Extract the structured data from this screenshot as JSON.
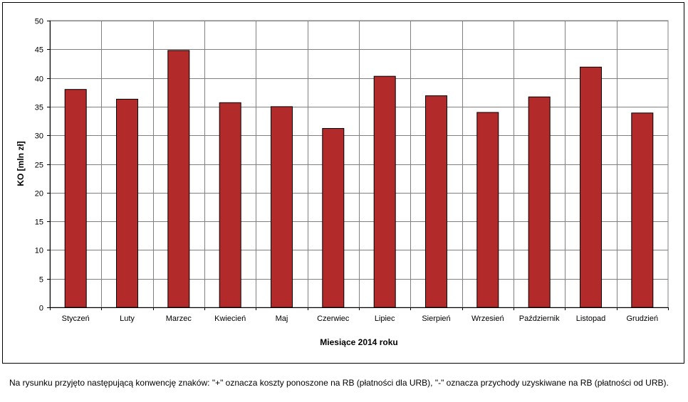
{
  "chart_data": {
    "type": "bar",
    "categories": [
      "Styczeń",
      "Luty",
      "Marzec",
      "Kwiecień",
      "Maj",
      "Czerwiec",
      "Lipiec",
      "Sierpień",
      "Wrzesień",
      "Październik",
      "Listopad",
      "Grudzień"
    ],
    "values": [
      38.0,
      36.3,
      44.8,
      35.7,
      35.0,
      31.2,
      40.3,
      36.9,
      34.0,
      36.7,
      41.9,
      33.9
    ],
    "title": "",
    "xlabel": "Miesiące 2014 roku",
    "ylabel": "KO [mln zł]",
    "ylim": [
      0,
      50
    ],
    "yticks": [
      0,
      5,
      10,
      15,
      20,
      25,
      30,
      35,
      40,
      45,
      50
    ],
    "grid": true,
    "legend": "none",
    "bar_color": "#b22a2a",
    "grid_color": "#808080"
  },
  "footnote": "Na rysunku przyjęto następującą konwencję znaków: \"+\" oznacza koszty ponoszone na RB (płatności dla URB), \"-\" oznacza przychody uzyskiwane na RB (płatności od URB)."
}
